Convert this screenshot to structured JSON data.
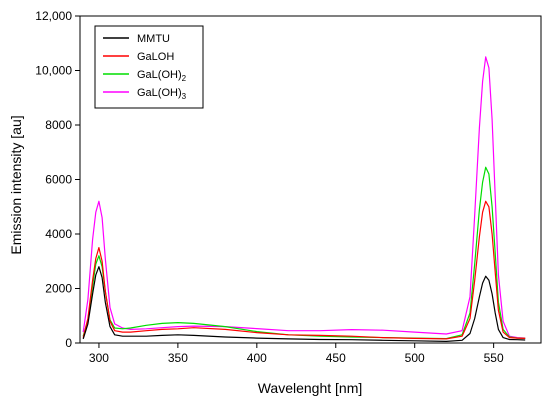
{
  "chart_data": {
    "type": "line",
    "title": "",
    "xlabel": "Wavelenght [nm]",
    "ylabel": "Emission intensity [au]",
    "xlim": [
      288,
      580
    ],
    "ylim": [
      0,
      12000
    ],
    "x_ticks": [
      300,
      350,
      400,
      450,
      500,
      550
    ],
    "y_ticks": [
      {
        "value": 0,
        "label": "0"
      },
      {
        "value": 2000,
        "label": "2000"
      },
      {
        "value": 4000,
        "label": "4000"
      },
      {
        "value": 6000,
        "label": "6000"
      },
      {
        "value": 8000,
        "label": "8000"
      },
      {
        "value": 10000,
        "label": "10,000"
      },
      {
        "value": 12000,
        "label": "12,000"
      }
    ],
    "legend_position": "top-left",
    "series": [
      {
        "name": "MMTU",
        "legend_main": "MMTU",
        "legend_sub": "",
        "color": "#000000",
        "x": [
          290,
          293,
          296,
          298,
          300,
          302,
          304,
          307,
          310,
          315,
          320,
          330,
          340,
          350,
          360,
          380,
          400,
          420,
          440,
          460,
          480,
          500,
          520,
          530,
          535,
          538,
          541,
          543,
          545,
          547,
          549,
          551,
          553,
          556,
          560,
          565,
          570
        ],
        "y": [
          150,
          700,
          1800,
          2500,
          2800,
          2400,
          1500,
          600,
          300,
          250,
          250,
          250,
          280,
          300,
          280,
          220,
          180,
          150,
          130,
          120,
          100,
          80,
          60,
          100,
          350,
          900,
          1700,
          2200,
          2450,
          2300,
          1800,
          1100,
          500,
          200,
          130,
          120,
          110
        ]
      },
      {
        "name": "GaLOH",
        "legend_main": "GaLOH",
        "legend_sub": "",
        "color": "#ff0000",
        "x": [
          290,
          293,
          296,
          298,
          300,
          302,
          304,
          307,
          310,
          315,
          320,
          330,
          340,
          350,
          360,
          380,
          400,
          420,
          440,
          460,
          480,
          500,
          520,
          530,
          535,
          538,
          541,
          543,
          545,
          547,
          549,
          551,
          553,
          556,
          560,
          565,
          570
        ],
        "y": [
          200,
          900,
          2300,
          3100,
          3500,
          3000,
          1900,
          800,
          450,
          400,
          400,
          450,
          500,
          520,
          560,
          500,
          380,
          300,
          280,
          250,
          200,
          170,
          150,
          250,
          900,
          2300,
          3900,
          4800,
          5200,
          5000,
          4000,
          2600,
          1200,
          400,
          200,
          180,
          170
        ]
      },
      {
        "name": "GaL(OH)2",
        "legend_main": "GaL(OH)",
        "legend_sub": "2",
        "color": "#00dd00",
        "x": [
          290,
          293,
          296,
          298,
          300,
          302,
          304,
          307,
          310,
          315,
          320,
          330,
          340,
          350,
          360,
          380,
          400,
          420,
          440,
          460,
          480,
          500,
          520,
          530,
          535,
          538,
          541,
          543,
          545,
          547,
          549,
          551,
          553,
          556,
          560,
          565,
          570
        ],
        "y": [
          250,
          850,
          2100,
          2900,
          3200,
          2800,
          1900,
          850,
          550,
          520,
          550,
          650,
          720,
          750,
          720,
          600,
          420,
          300,
          250,
          220,
          200,
          180,
          160,
          300,
          1100,
          2900,
          4900,
          5900,
          6450,
          6200,
          5000,
          3300,
          1500,
          500,
          220,
          180,
          170
        ]
      },
      {
        "name": "GaL(OH)3",
        "legend_main": "GaL(OH)",
        "legend_sub": "3",
        "color": "#ff00ff",
        "x": [
          290,
          293,
          296,
          298,
          300,
          302,
          304,
          307,
          310,
          315,
          320,
          330,
          340,
          350,
          360,
          380,
          400,
          420,
          440,
          460,
          480,
          500,
          520,
          530,
          535,
          538,
          541,
          543,
          545,
          547,
          549,
          551,
          553,
          556,
          560,
          565,
          570
        ],
        "y": [
          400,
          1600,
          3800,
          4800,
          5200,
          4600,
          3100,
          1300,
          700,
          550,
          500,
          520,
          560,
          600,
          620,
          600,
          530,
          450,
          450,
          490,
          470,
          400,
          330,
          450,
          1700,
          4700,
          7900,
          9600,
          10500,
          10100,
          8200,
          5400,
          2500,
          800,
          250,
          200,
          180
        ]
      }
    ]
  }
}
